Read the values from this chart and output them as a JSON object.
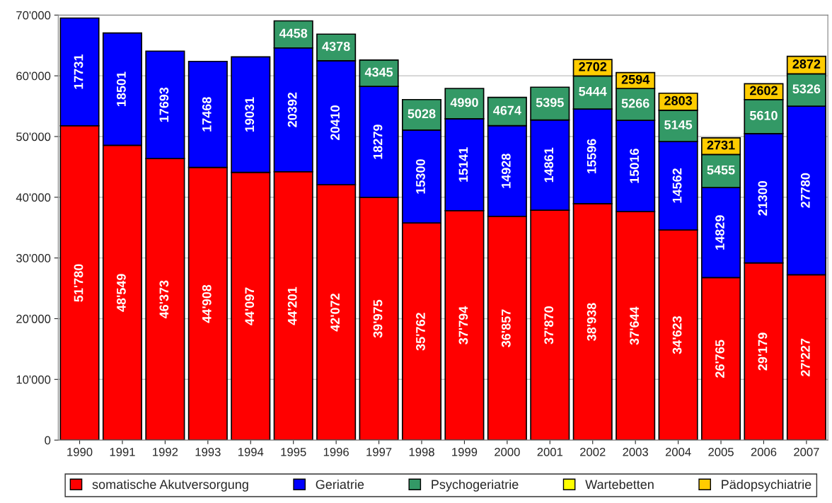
{
  "chart_data": {
    "type": "bar",
    "stacked": true,
    "categories": [
      "1990",
      "1991",
      "1992",
      "1993",
      "1994",
      "1995",
      "1996",
      "1997",
      "1998",
      "1999",
      "2000",
      "2001",
      "2002",
      "2003",
      "2004",
      "2005",
      "2006",
      "2007"
    ],
    "series": [
      {
        "name": "somatische Akutversorgung",
        "color": "#ff0000",
        "values": [
          51780,
          48549,
          46373,
          44908,
          44097,
          44201,
          42072,
          39975,
          35762,
          37794,
          36857,
          37870,
          38938,
          37644,
          34623,
          26765,
          29179,
          27227
        ],
        "value_labels": [
          "51'780",
          "48'549",
          "46'373",
          "44'908",
          "44'097",
          "44'201",
          "42'072",
          "39'975",
          "35'762",
          "37'794",
          "36'857",
          "37'870",
          "38'938",
          "37'644",
          "34'623",
          "26'765",
          "29'179",
          "27'227"
        ]
      },
      {
        "name": "Geriatrie",
        "color": "#0000ff",
        "values": [
          17731,
          18501,
          17693,
          17468,
          19031,
          20392,
          20410,
          18279,
          15300,
          15141,
          14928,
          14861,
          15596,
          15016,
          14562,
          14829,
          21300,
          27780
        ],
        "value_labels": [
          "17731",
          "18501",
          "17693",
          "17468",
          "19031",
          "20392",
          "20410",
          "18279",
          "15300",
          "15141",
          "14928",
          "14861",
          "15596",
          "15016",
          "14562",
          "14829",
          "21300",
          "27780"
        ]
      },
      {
        "name": "Psychogeriatrie",
        "color": "#339966",
        "values": [
          null,
          null,
          null,
          null,
          null,
          4458,
          4378,
          4345,
          5028,
          4990,
          4674,
          5395,
          5444,
          5266,
          5145,
          5455,
          5610,
          5326
        ],
        "value_labels": [
          null,
          null,
          null,
          null,
          null,
          "4458",
          "4378",
          "4345",
          "5028",
          "4990",
          "4674",
          "5395",
          "5444",
          "5266",
          "5145",
          "5455",
          "5610",
          "5326"
        ]
      },
      {
        "name": "Wartebetten",
        "color": "#ffff00",
        "values": [
          null,
          null,
          null,
          null,
          null,
          null,
          null,
          null,
          null,
          null,
          null,
          null,
          null,
          null,
          null,
          null,
          null,
          null
        ]
      },
      {
        "name": "Pädopsychiatrie",
        "color": "#ffcc00",
        "values": [
          null,
          null,
          null,
          null,
          null,
          null,
          null,
          null,
          null,
          null,
          null,
          null,
          2702,
          2594,
          2803,
          2731,
          2602,
          2872
        ],
        "value_labels": [
          null,
          null,
          null,
          null,
          null,
          null,
          null,
          null,
          null,
          null,
          null,
          null,
          "2702",
          "2594",
          "2803",
          "2731",
          "2602",
          "2872"
        ]
      }
    ],
    "ylim": [
      0,
      70000
    ],
    "yticks": [
      0,
      {
        "value": 10000,
        "label": "10'000"
      },
      {
        "value": 20000,
        "label": "20'000"
      },
      {
        "value": 30000,
        "label": "30'000"
      },
      {
        "value": 40000,
        "label": "40'000"
      },
      {
        "value": 50000,
        "label": "50'000"
      },
      {
        "value": 60000,
        "label": "60'000"
      },
      {
        "value": 70000,
        "label": "70'000"
      }
    ],
    "grid": "y",
    "legend": "bottom"
  }
}
